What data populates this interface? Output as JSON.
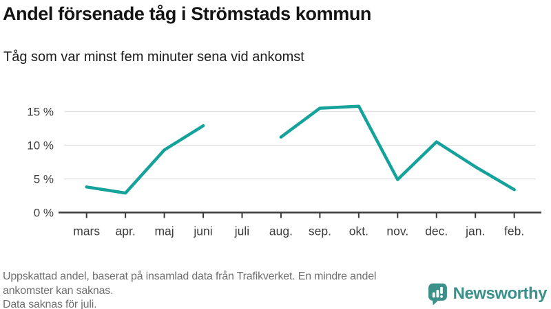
{
  "header": {
    "title": "Andel försenade tåg i Strömstads kommun",
    "subtitle": "Tåg som var minst fem minuter sena vid ankomst"
  },
  "chart_data": {
    "type": "line",
    "categories": [
      "mars",
      "apr.",
      "maj",
      "juni",
      "juli",
      "aug.",
      "sep.",
      "okt.",
      "nov.",
      "dec.",
      "jan.",
      "feb."
    ],
    "series": [
      {
        "name": "Andel försenade tåg (%)",
        "values": [
          3.8,
          2.9,
          9.3,
          12.9,
          null,
          11.2,
          15.5,
          15.8,
          4.9,
          10.5,
          6.8,
          3.4
        ]
      }
    ],
    "title": "Andel försenade tåg i Strömstads kommun",
    "xlabel": "",
    "ylabel": "",
    "yticks": [
      0,
      5,
      10,
      15
    ],
    "ytick_labels": [
      "0 %",
      "5 %",
      "10 %",
      "15 %"
    ],
    "ylim": [
      0,
      17
    ],
    "grid": true,
    "legend": "none",
    "missing_data_note": "Data saknas för juli.",
    "line_color": "#14a29a",
    "axis_color": "#3a3a3a",
    "gridline_color": "#e3e3e3",
    "tick_label_color": "#3d3d3d"
  },
  "footer": {
    "note1": "Uppskattad andel, baserat på insamlad data från Trafikverket. En mindre andel ankomster kan saknas.",
    "note2": "Data saknas för juli.",
    "brand": "Newsworthy",
    "brand_color": "#3b918a"
  }
}
